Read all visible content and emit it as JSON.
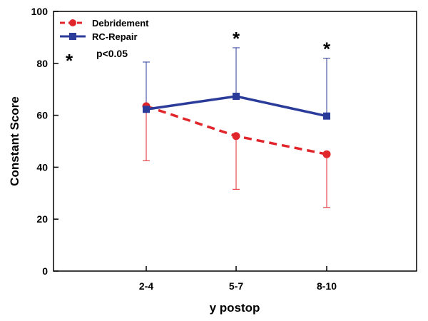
{
  "chart_data": {
    "type": "line",
    "xlabel": "y postop",
    "ylabel": "Constant Score",
    "categories": [
      "2-4",
      "5-7",
      "8-10"
    ],
    "ylim": [
      0,
      100
    ],
    "yticks": [
      0,
      20,
      40,
      60,
      80,
      100
    ],
    "grid": false,
    "legend_position": "top-left",
    "series": [
      {
        "name": "Debridement",
        "values": [
          63.5,
          52.0,
          45.0
        ],
        "error_lower": [
          42.5,
          31.5,
          24.5
        ],
        "color": "#E0252B",
        "line_style": "dashed",
        "marker": "circle"
      },
      {
        "name": "RC-Repair",
        "values": [
          62.3,
          67.3,
          59.7
        ],
        "error_upper": [
          80.5,
          86.0,
          82.0
        ],
        "color": "#2A3B9A",
        "line_style": "solid",
        "marker": "square"
      }
    ],
    "significance": {
      "marker": "*",
      "label": "p<0.05",
      "categories": [
        "5-7",
        "8-10"
      ]
    }
  }
}
